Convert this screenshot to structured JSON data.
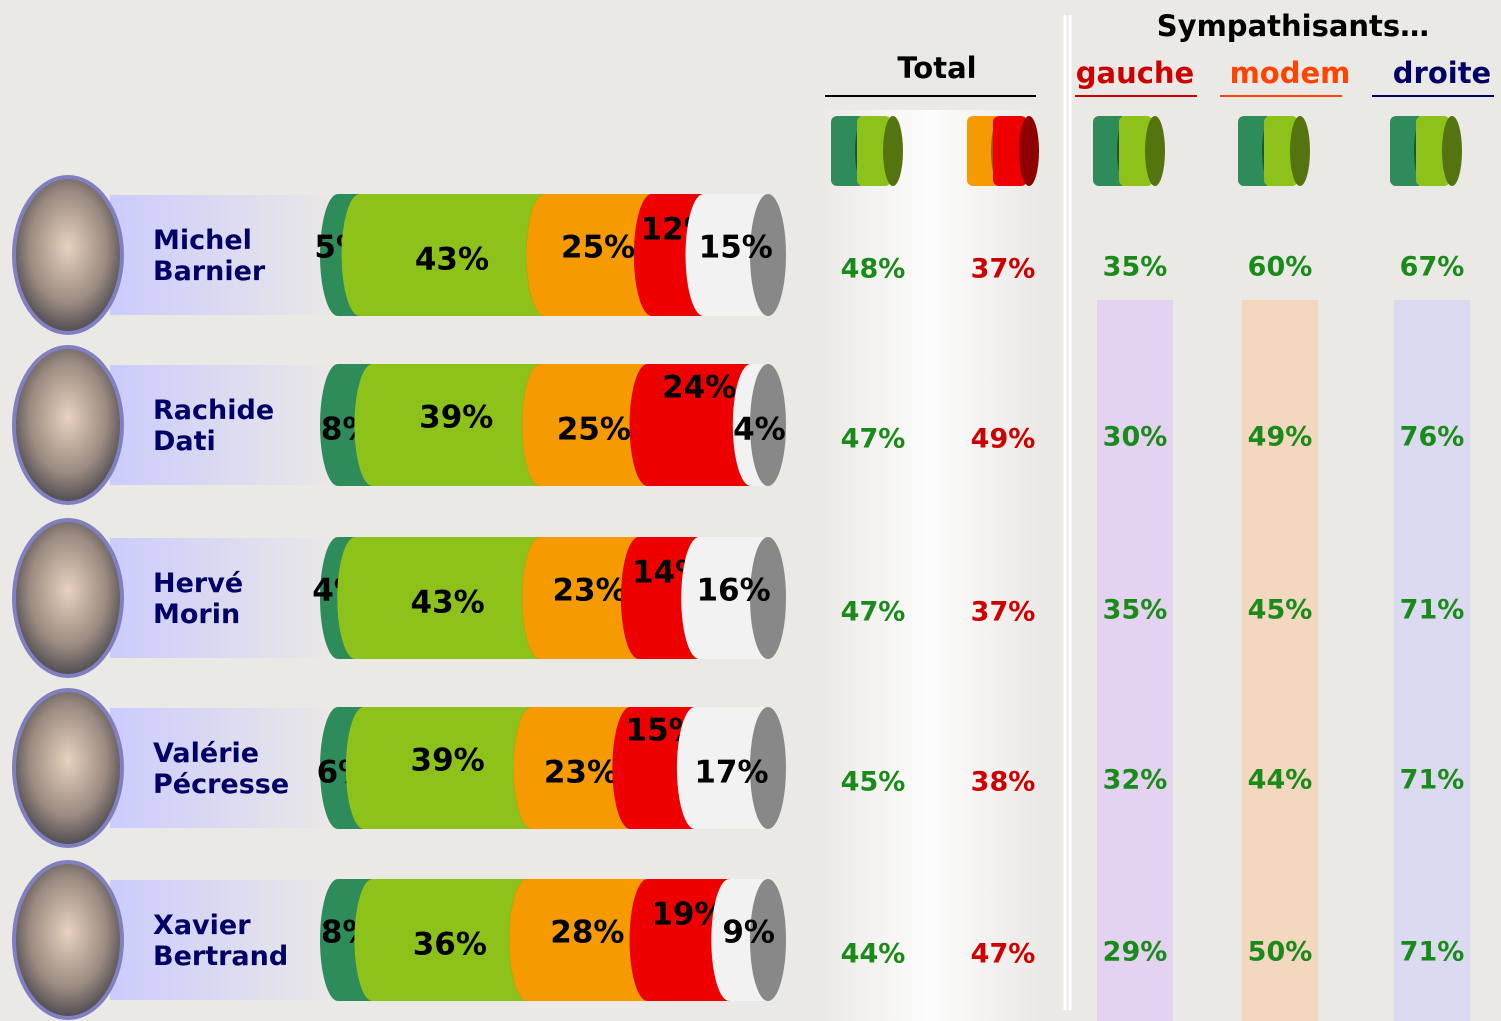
{
  "chart_data": {
    "type": "stacked-cylinder-bar",
    "categories": [
      "Michel Barnier",
      "Rachide Dati",
      "Hervé Morin",
      "Valérie Pécresse",
      "Xavier Bertrand"
    ],
    "series": [
      {
        "color": "#2e8b5a",
        "values": [
          5,
          8,
          4,
          6,
          8
        ],
        "value_labels": [
          "5%",
          "8%",
          "4%",
          "6%",
          "8%"
        ]
      },
      {
        "color": "#8cc21a",
        "values": [
          43,
          39,
          43,
          39,
          36
        ],
        "value_labels": [
          "43%",
          "39%",
          "43%",
          "39%",
          "36%"
        ]
      },
      {
        "color": "#f59a00",
        "values": [
          25,
          25,
          23,
          23,
          28
        ],
        "value_labels": [
          "25%",
          "25%",
          "23%",
          "23%",
          "28%"
        ]
      },
      {
        "color": "#ee0000",
        "values": [
          12,
          24,
          14,
          15,
          19
        ],
        "value_labels": [
          "12%",
          "24%",
          "14%",
          "15%",
          "19%"
        ]
      },
      {
        "color": "#f2f2f2",
        "values": [
          15,
          4,
          16,
          17,
          9
        ],
        "value_labels": [
          "15%",
          "4%",
          "16%",
          "17%",
          "9%"
        ]
      }
    ]
  },
  "table": {
    "total": {
      "header": "Total",
      "columns": [
        {
          "color": "#1a8a1a",
          "cells": [
            "48%",
            "47%",
            "47%",
            "45%",
            "44%"
          ]
        },
        {
          "color": "#cc0000",
          "cells": [
            "37%",
            "49%",
            "37%",
            "38%",
            "47%"
          ]
        }
      ]
    },
    "sympathisants": {
      "header": "Sympathisants…",
      "columns": [
        {
          "header": "gauche",
          "header_color": "#cc0000",
          "band_color": "#d9b8ff",
          "color": "#1a8a1a",
          "cells": [
            "35%",
            "30%",
            "35%",
            "32%",
            "29%"
          ]
        },
        {
          "header": "modem",
          "header_color": "#ff4400",
          "band_color": "#ffc090",
          "color": "#1a8a1a",
          "cells": [
            "60%",
            "49%",
            "45%",
            "44%",
            "50%"
          ]
        },
        {
          "header": "droite",
          "header_color": "#000066",
          "band_color": "#c8c8ff",
          "color": "#1a8a1a",
          "cells": [
            "67%",
            "76%",
            "71%",
            "71%",
            "71%"
          ]
        }
      ]
    }
  }
}
